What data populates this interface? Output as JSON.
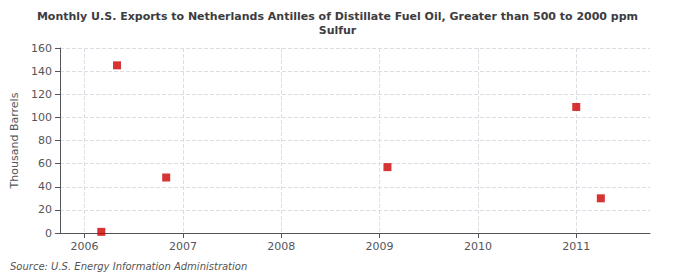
{
  "chart_data": {
    "type": "scatter",
    "title": "Monthly U.S. Exports to Netherlands Antilles of Distillate Fuel Oil, Greater than 500 to 2000 ppm\nSulfur",
    "ylabel": "Thousand Barrels",
    "annotations": [
      "Source: U.S. Energy Information Administration"
    ],
    "x": [
      2006.17,
      2006.33,
      2006.83,
      2009.08,
      2011.0,
      2011.25
    ],
    "values": [
      1,
      145,
      48,
      57,
      109,
      30
    ],
    "color": "#cc0000",
    "marker": "square",
    "xlim": [
      2005.75,
      2011.75
    ],
    "xticks": [
      2006,
      2007,
      2008,
      2009,
      2010,
      2011
    ],
    "ylim": [
      0,
      160
    ],
    "yticks": [
      0,
      20,
      40,
      60,
      80,
      100,
      120,
      140,
      160
    ],
    "grid": true
  }
}
